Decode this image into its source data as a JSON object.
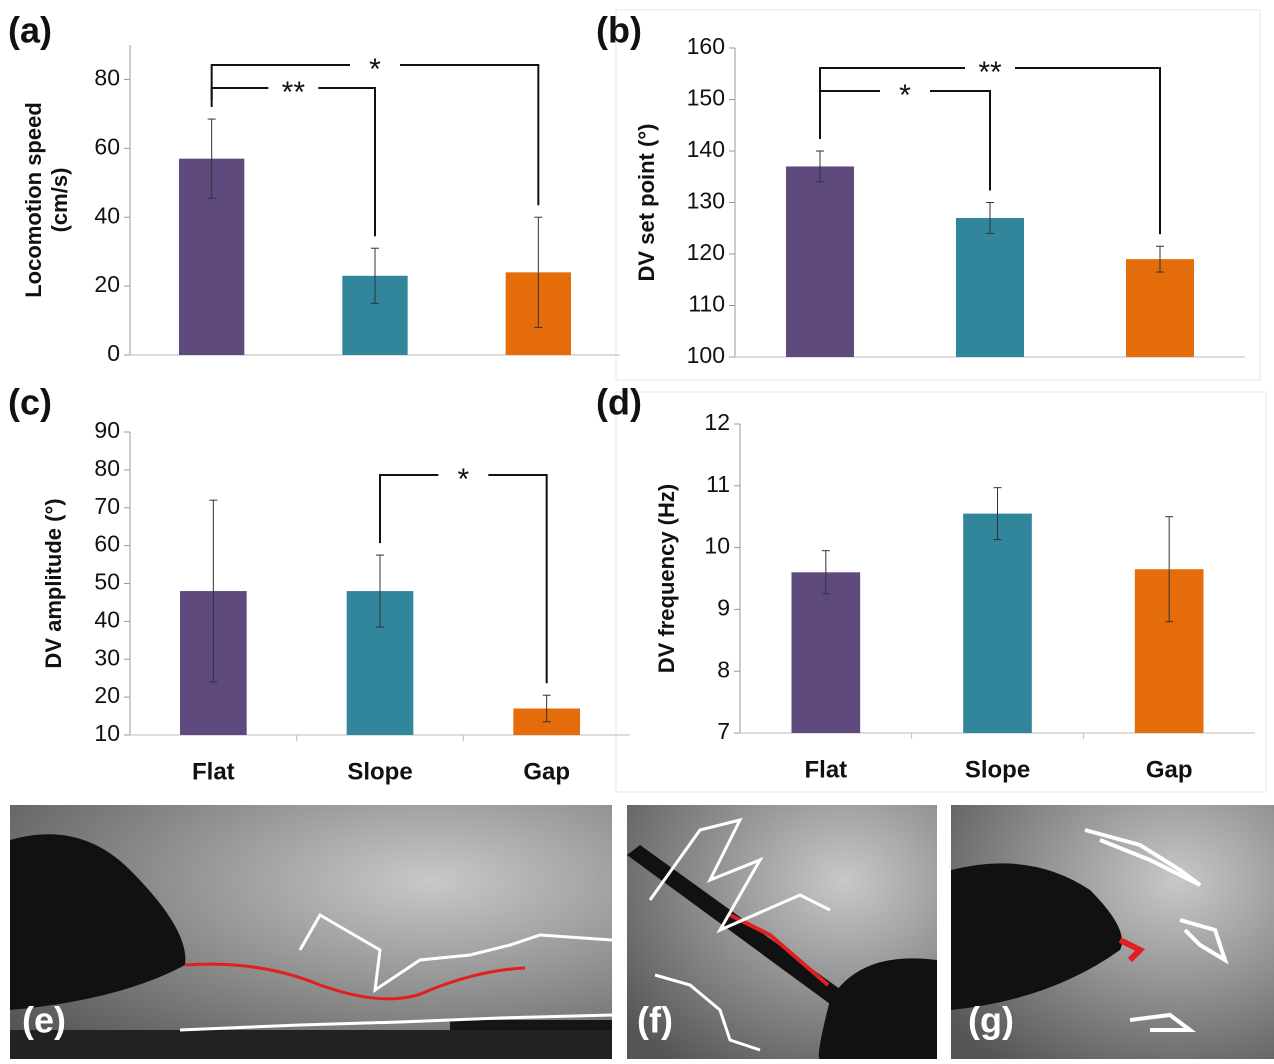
{
  "chart_data": [
    {
      "type": "bar",
      "label": "(a)",
      "ylabel": [
        "Locomotion speed",
        "(cm/s)"
      ],
      "values": [
        57,
        23,
        24
      ],
      "errors": [
        11.5,
        8,
        16
      ],
      "colors": [
        "#5f4a7d",
        "#31869b",
        "#e46c0a"
      ],
      "ylim": [
        0,
        90
      ],
      "yticks": [
        0,
        20,
        40,
        60,
        80
      ],
      "annotations": [
        {
          "pair": [
            0,
            1
          ],
          "text": "**"
        },
        {
          "pair": [
            0,
            2
          ],
          "text": "*"
        }
      ]
    },
    {
      "type": "bar",
      "label": "(b)",
      "ylabel": [
        "DV set point (°)"
      ],
      "values": [
        137,
        127,
        119
      ],
      "errors": [
        3,
        3,
        2.5
      ],
      "colors": [
        "#5f4a7d",
        "#31869b",
        "#e46c0a"
      ],
      "ylim": [
        100,
        160
      ],
      "yticks": [
        100,
        110,
        120,
        130,
        140,
        150,
        160
      ],
      "annotations": [
        {
          "pair": [
            0,
            1
          ],
          "text": "*"
        },
        {
          "pair": [
            0,
            2
          ],
          "text": "**"
        }
      ]
    },
    {
      "type": "bar",
      "label": "(c)",
      "ylabel": [
        "DV amplitude (°)"
      ],
      "categories": [
        "Flat",
        "Slope",
        "Gap"
      ],
      "values": [
        48,
        48,
        17
      ],
      "errors": [
        24,
        9.5,
        3.5
      ],
      "colors": [
        "#5f4a7d",
        "#31869b",
        "#e46c0a"
      ],
      "ylim": [
        10,
        90
      ],
      "yticks": [
        10,
        20,
        30,
        40,
        50,
        60,
        70,
        80,
        90
      ],
      "annotations": [
        {
          "pair": [
            1,
            2
          ],
          "text": "*"
        }
      ]
    },
    {
      "type": "bar",
      "label": "(d)",
      "ylabel": [
        "DV frequency (Hz)"
      ],
      "categories": [
        "Flat",
        "Slope",
        "Gap"
      ],
      "values": [
        9.6,
        10.55,
        9.65
      ],
      "errors": [
        0.35,
        0.42,
        0.85
      ],
      "colors": [
        "#5f4a7d",
        "#31869b",
        "#e46c0a"
      ],
      "ylim": [
        7,
        12
      ],
      "yticks": [
        7,
        8,
        9,
        10,
        11,
        12
      ]
    }
  ],
  "photos": [
    {
      "label": "(e)"
    },
    {
      "label": "(f)"
    },
    {
      "label": "(g)"
    }
  ]
}
